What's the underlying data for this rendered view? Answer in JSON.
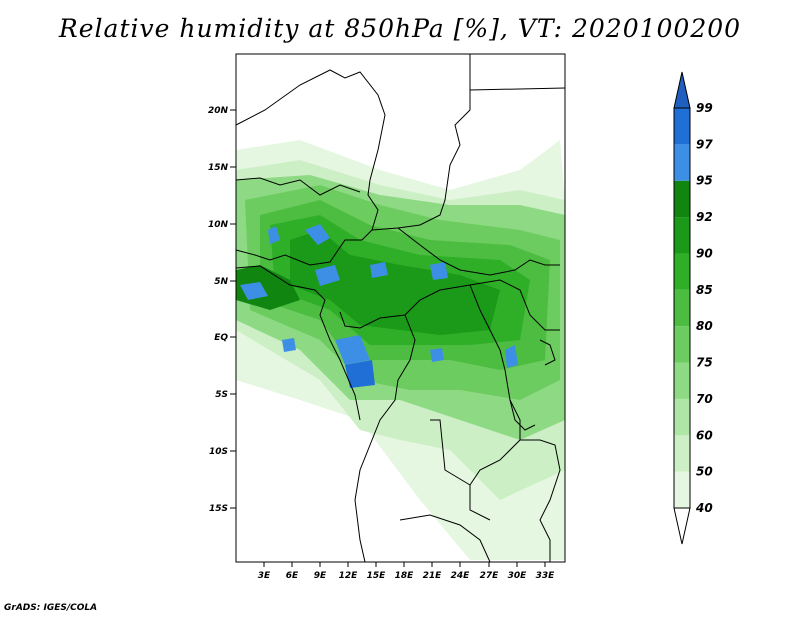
{
  "title": "Relative humidity at 850hPa [%], VT: 2020100200",
  "credit": "GrADS: IGES/COLA",
  "map": {
    "lat_labels": [
      "20N",
      "15N",
      "10N",
      "5N",
      "EQ",
      "5S",
      "10S",
      "15S"
    ],
    "lon_labels": [
      "3E",
      "6E",
      "9E",
      "12E",
      "15E",
      "18E",
      "21E",
      "24E",
      "27E",
      "30E",
      "33E"
    ]
  },
  "legend": {
    "levels": [
      "40",
      "50",
      "60",
      "70",
      "75",
      "80",
      "85",
      "90",
      "92",
      "95",
      "97",
      "99"
    ],
    "colors": [
      "#ffffff",
      "#e6f7e1",
      "#ccefc6",
      "#aee6a5",
      "#8ed983",
      "#6dcc60",
      "#4cbd40",
      "#2fae28",
      "#1a9a18",
      "#108510",
      "#3d8fe6",
      "#1f6fd6",
      "#1f5fc0"
    ]
  }
}
